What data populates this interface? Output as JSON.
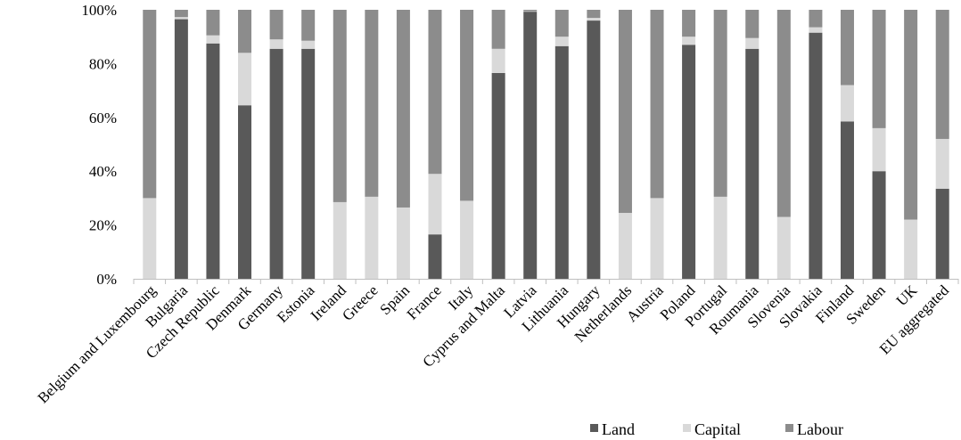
{
  "chart_data": {
    "type": "bar",
    "stacked": true,
    "percent_stacked": true,
    "categories": [
      "Belgium and Luxembourg",
      "Bulgaria",
      "Czech Republic",
      "Denmark",
      "Germany",
      "Estonia",
      "Ireland",
      "Greece",
      "Spain",
      "France",
      "Italy",
      "Cyprus and Malta",
      "Latvia",
      "Lithuania",
      "Hungary",
      "Netherlands",
      "Austria",
      "Poland",
      "Portugal",
      "Roumania",
      "Slovenia",
      "Slovakia",
      "Finland",
      "Sweden",
      "UK",
      "EU aggregated"
    ],
    "series": [
      {
        "name": "Land",
        "color": "#595959",
        "values": [
          0,
          96.5,
          87.5,
          64.5,
          85.5,
          85.5,
          0,
          0,
          0,
          16.5,
          0,
          76.5,
          99.3,
          86.5,
          96,
          0,
          0,
          87,
          0,
          85.5,
          0,
          91.5,
          58.5,
          40,
          0,
          33.5
        ]
      },
      {
        "name": "Capital",
        "color": "#d9d9d9",
        "values": [
          30,
          0.8,
          3,
          19.5,
          3.5,
          3,
          28.5,
          30.5,
          26.5,
          22.5,
          29,
          9,
          0.2,
          3.5,
          1,
          24.5,
          30,
          3,
          30.5,
          4,
          23,
          2,
          13.5,
          16,
          22,
          18.5
        ]
      },
      {
        "name": "Labour",
        "color": "#8c8c8c",
        "values": [
          70,
          2.7,
          9.5,
          16,
          11,
          11.5,
          71.5,
          69.5,
          73.5,
          61,
          71,
          14.5,
          0.5,
          10,
          3,
          75.5,
          70,
          10,
          69.5,
          10.5,
          77,
          6.5,
          28,
          44,
          78,
          48
        ]
      }
    ],
    "y_ticks": [
      "0%",
      "20%",
      "40%",
      "60%",
      "80%",
      "100%"
    ],
    "ylim": [
      0,
      100
    ],
    "legend": {
      "position": "bottom-right"
    },
    "grid": false
  }
}
